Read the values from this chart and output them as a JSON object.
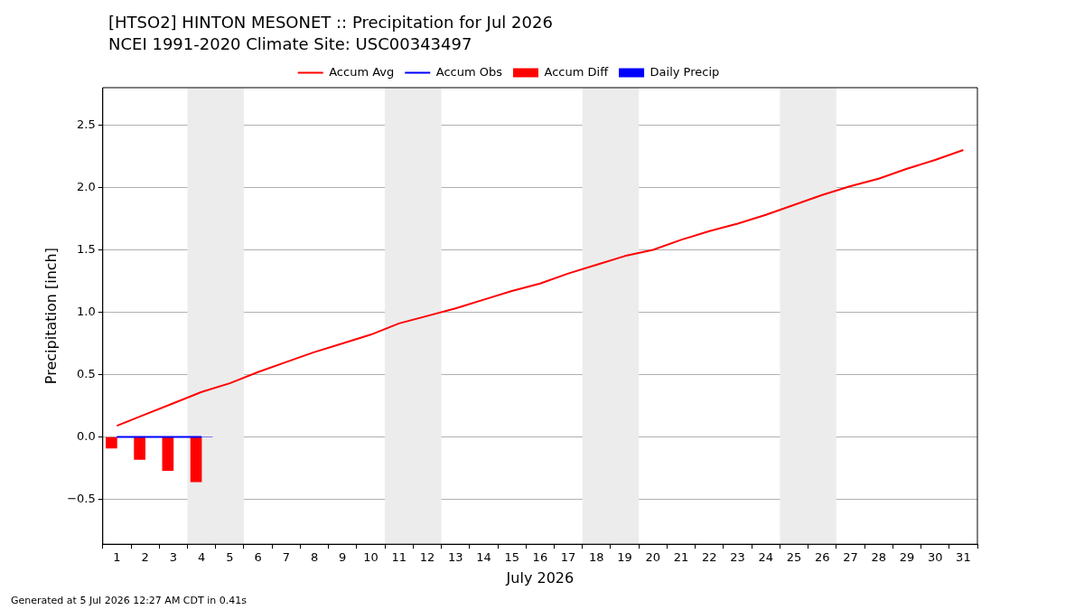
{
  "chart_data": {
    "type": "line",
    "title": "[HTSO2] HINTON MESONET :: Precipitation for Jul 2026",
    "subtitle": "NCEI 1991-2020 Climate Site: USC00343497",
    "xlabel": "July 2026",
    "ylabel": "Precipitation [inch]",
    "x": [
      1,
      2,
      3,
      4,
      5,
      6,
      7,
      8,
      9,
      10,
      11,
      12,
      13,
      14,
      15,
      16,
      17,
      18,
      19,
      20,
      21,
      22,
      23,
      24,
      25,
      26,
      27,
      28,
      29,
      30,
      31
    ],
    "series": [
      {
        "name": "Accum Avg",
        "color": "#ff0000",
        "values": [
          0.09,
          0.18,
          0.27,
          0.36,
          0.43,
          0.52,
          0.6,
          0.68,
          0.75,
          0.82,
          0.91,
          0.97,
          1.03,
          1.1,
          1.17,
          1.23,
          1.31,
          1.38,
          1.45,
          1.5,
          1.58,
          1.65,
          1.71,
          1.78,
          1.86,
          1.94,
          2.01,
          2.07,
          2.15,
          2.22,
          2.3
        ]
      },
      {
        "name": "Accum Obs",
        "color": "#0000ff",
        "x": [
          1,
          2,
          3,
          4
        ],
        "values": [
          0,
          0,
          0,
          0
        ]
      },
      {
        "name": "Accum Diff",
        "type": "bar",
        "color": "#ff0000",
        "x": [
          1,
          2,
          3,
          4
        ],
        "values": [
          -0.09,
          -0.18,
          -0.27,
          -0.36
        ]
      },
      {
        "name": "Daily Precip",
        "type": "bar",
        "color": "#0000ff",
        "x": [
          1,
          2,
          3,
          4
        ],
        "values": [
          0,
          0,
          0,
          0
        ]
      }
    ],
    "xlim": [
      0.5,
      31.5
    ],
    "xticks": [
      1,
      2,
      3,
      4,
      5,
      6,
      7,
      8,
      9,
      10,
      11,
      12,
      13,
      14,
      15,
      16,
      17,
      18,
      19,
      20,
      21,
      22,
      23,
      24,
      25,
      26,
      27,
      28,
      29,
      30,
      31
    ],
    "ylim": [
      -0.86,
      2.8
    ],
    "yticks": [
      {
        "value": -0.5,
        "label": "−0.5"
      },
      {
        "value": 0,
        "label": "0.0"
      },
      {
        "value": 0.5,
        "label": "0.5"
      },
      {
        "value": 1,
        "label": "1.0"
      },
      {
        "value": 1.5,
        "label": "1.5"
      },
      {
        "value": 2,
        "label": "2.0"
      },
      {
        "value": 2.5,
        "label": "2.5"
      }
    ],
    "bands": [
      {
        "axis": "x",
        "from": 3.5,
        "to": 5.5,
        "color": "#ececec"
      },
      {
        "axis": "x",
        "from": 10.5,
        "to": 12.5,
        "color": "#ececec"
      },
      {
        "axis": "x",
        "from": 17.5,
        "to": 19.5,
        "color": "#ececec"
      },
      {
        "axis": "x",
        "from": 24.5,
        "to": 26.5,
        "color": "#ececec"
      }
    ],
    "grid": "y",
    "legend": "top",
    "marker": "none",
    "line_style": "solid",
    "annotations": [
      "Generated at 5 Jul 2026 12:27 AM CDT in 0.41s"
    ]
  }
}
